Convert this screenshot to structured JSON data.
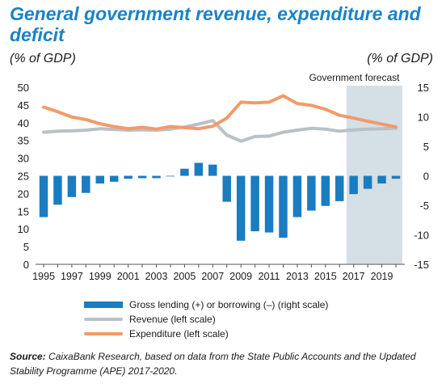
{
  "title": "General government revenue, expenditure and deficit",
  "left_unit": "(% of GDP)",
  "right_unit": "(% of GDP)",
  "forecast_label": "Government forecast",
  "colors": {
    "bars": "#1a7cc1",
    "revenue": "#b9c1c6",
    "expenditure": "#f29a6a",
    "forecast_shade": "#d5dfe6",
    "title": "#1a82c6"
  },
  "legend": [
    {
      "key": "bars",
      "label": "Gross lending (+) or borrowing (–) (right scale)"
    },
    {
      "key": "revenue",
      "label": "Revenue (left scale)"
    },
    {
      "key": "expenditure",
      "label": "Expenditure (left scale)"
    }
  ],
  "source_prefix": "Source:",
  "source_text": "CaixaBank Research, based on data from the State Public Accounts and the Updated Stability Programme (APE) 2017-2020.",
  "chart_data": {
    "type": "bar+line",
    "x": [
      1995,
      1996,
      1997,
      1998,
      1999,
      2000,
      2001,
      2002,
      2003,
      2004,
      2005,
      2006,
      2007,
      2008,
      2009,
      2010,
      2011,
      2012,
      2013,
      2014,
      2015,
      2016,
      2017,
      2018,
      2019,
      2020
    ],
    "x_tick_labels": [
      "1995",
      "1997",
      "1999",
      "2001",
      "2003",
      "2005",
      "2007",
      "2009",
      "2011",
      "2013",
      "2015",
      "2017",
      "2019"
    ],
    "left_axis": {
      "ylim": [
        0,
        50
      ],
      "ticks": [
        0,
        5,
        10,
        15,
        20,
        25,
        30,
        35,
        40,
        45,
        50
      ]
    },
    "right_axis": {
      "ylim": [
        -15,
        15
      ],
      "ticks": [
        -15,
        -10,
        -5,
        0,
        5,
        10,
        15
      ]
    },
    "forecast_start": 2017,
    "series": [
      {
        "name": "Gross lending (+) or borrowing (–) (right scale)",
        "type": "bar",
        "axis": "right",
        "values": [
          -7.0,
          -4.9,
          -3.6,
          -2.9,
          -1.3,
          -1.0,
          -0.5,
          -0.4,
          -0.4,
          0.0,
          1.2,
          2.2,
          1.9,
          -4.4,
          -11.0,
          -9.4,
          -9.6,
          -10.5,
          -7.0,
          -5.9,
          -5.1,
          -4.3,
          -3.1,
          -2.2,
          -1.3,
          -0.5
        ]
      },
      {
        "name": "Revenue (left scale)",
        "type": "line",
        "axis": "left",
        "values": [
          37.3,
          37.6,
          37.7,
          37.9,
          38.3,
          38.1,
          37.9,
          38.0,
          37.9,
          38.2,
          38.8,
          39.6,
          40.6,
          36.5,
          34.8,
          36.1,
          36.2,
          37.3,
          37.9,
          38.4,
          38.2,
          37.6,
          38.0,
          38.2,
          38.3,
          38.4
        ]
      },
      {
        "name": "Expenditure (left scale)",
        "type": "line",
        "axis": "left",
        "values": [
          44.4,
          43.1,
          41.6,
          40.9,
          39.7,
          38.9,
          38.3,
          38.7,
          38.2,
          38.9,
          38.6,
          38.3,
          39.0,
          41.3,
          45.8,
          45.6,
          45.8,
          47.6,
          45.4,
          44.9,
          43.8,
          42.1,
          41.3,
          40.4,
          39.6,
          38.8
        ]
      }
    ]
  }
}
